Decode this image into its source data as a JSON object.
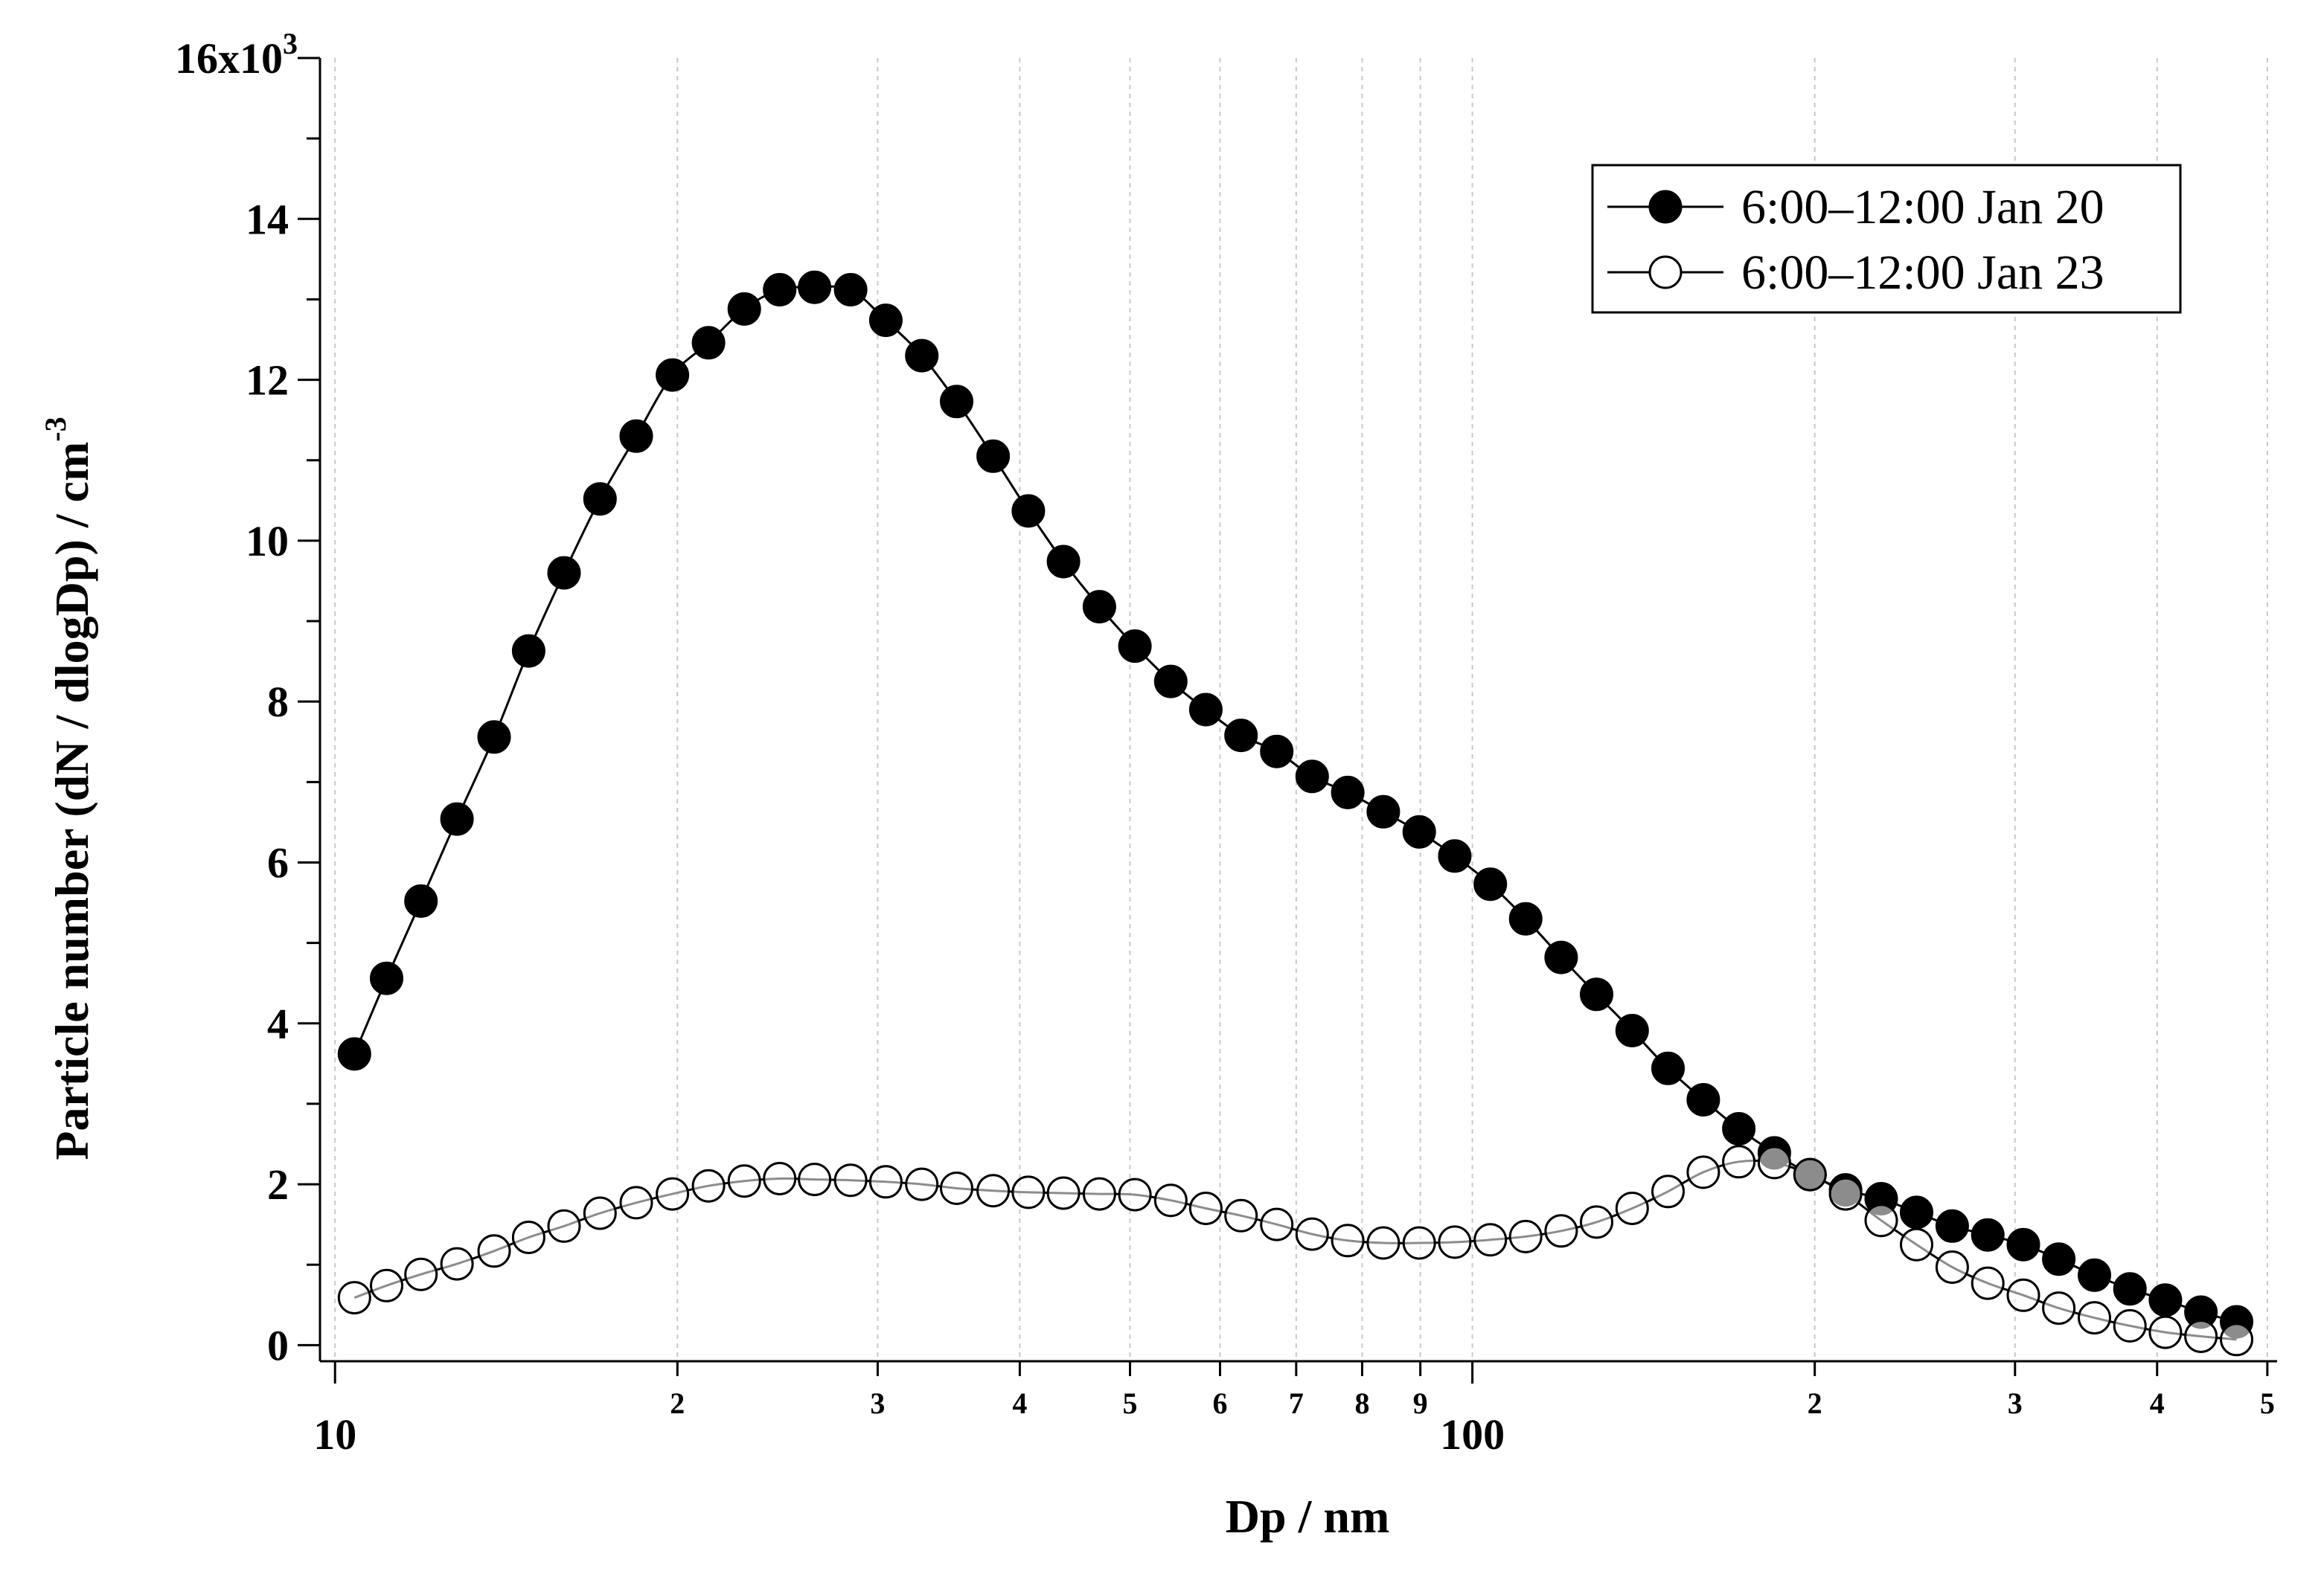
{
  "chart_data": {
    "type": "line",
    "title": "",
    "xlabel": "Dp / nm",
    "ylabel": "Particle number (dN / dlogDp) / cm",
    "ylabel_exponent": "-3",
    "x_scale": "log",
    "xlim": [
      9.7,
      510
    ],
    "ylim": [
      -200,
      16000
    ],
    "y_top_label": "16x10",
    "y_top_exponent": "3",
    "y_ticks": [
      {
        "value": 0,
        "label": "0"
      },
      {
        "value": 2000,
        "label": "2"
      },
      {
        "value": 4000,
        "label": "4"
      },
      {
        "value": 6000,
        "label": "6"
      },
      {
        "value": 8000,
        "label": "8"
      },
      {
        "value": 10000,
        "label": "10"
      },
      {
        "value": 12000,
        "label": "12"
      },
      {
        "value": 14000,
        "label": "14"
      }
    ],
    "x_major_ticks": [
      {
        "value": 10,
        "label": "10"
      },
      {
        "value": 100,
        "label": "100"
      }
    ],
    "x_minor_ticks": [
      {
        "value": 20,
        "label": "2"
      },
      {
        "value": 30,
        "label": "3"
      },
      {
        "value": 40,
        "label": "4"
      },
      {
        "value": 50,
        "label": "5"
      },
      {
        "value": 60,
        "label": "6"
      },
      {
        "value": 70,
        "label": "7"
      },
      {
        "value": 80,
        "label": "8"
      },
      {
        "value": 90,
        "label": "9"
      },
      {
        "value": 200,
        "label": "2"
      },
      {
        "value": 300,
        "label": "3"
      },
      {
        "value": 400,
        "label": "4"
      },
      {
        "value": 500,
        "label": "5"
      }
    ],
    "legend_position": "top-right",
    "series": [
      {
        "name": "6:00–12:00 Jan 20",
        "marker": "filled-circle",
        "x": [
          10.4,
          11.1,
          11.9,
          12.8,
          13.8,
          14.8,
          15.9,
          17.1,
          18.4,
          19.8,
          21.3,
          22.9,
          24.6,
          26.4,
          28.4,
          30.5,
          32.8,
          35.2,
          37.9,
          40.7,
          43.7,
          47.0,
          50.5,
          54.3,
          58.3,
          62.6,
          67.3,
          72.3,
          77.7,
          83.5,
          89.8,
          96.5,
          103.7,
          111.4,
          119.7,
          128.6,
          138.2,
          148.6,
          159.6,
          171.5,
          184.3,
          198.1,
          212.9,
          228.8,
          245.8,
          264.2,
          283.9,
          305.1,
          327.8,
          352.3,
          378.6,
          406.8,
          437.1,
          469.8
        ],
        "y": [
          3620,
          4560,
          5520,
          6540,
          7560,
          8630,
          9600,
          10520,
          11300,
          12060,
          12460,
          12880,
          13120,
          13150,
          13120,
          12740,
          12300,
          11730,
          11050,
          10370,
          9740,
          9180,
          8690,
          8250,
          7900,
          7580,
          7380,
          7070,
          6870,
          6630,
          6380,
          6080,
          5730,
          5300,
          4820,
          4360,
          3910,
          3440,
          3050,
          2690,
          2390,
          2120,
          1930,
          1820,
          1650,
          1480,
          1370,
          1250,
          1070,
          870,
          700,
          560,
          410,
          290
        ]
      },
      {
        "name": "6:00–12:00 Jan 23",
        "marker": "open-circle",
        "x": [
          10.4,
          11.1,
          11.9,
          12.8,
          13.8,
          14.8,
          15.9,
          17.1,
          18.4,
          19.8,
          21.3,
          22.9,
          24.6,
          26.4,
          28.4,
          30.5,
          32.8,
          35.2,
          37.9,
          40.7,
          43.7,
          47.0,
          50.5,
          54.3,
          58.3,
          62.6,
          67.3,
          72.3,
          77.7,
          83.5,
          89.8,
          96.5,
          103.7,
          111.4,
          119.7,
          128.6,
          138.2,
          148.6,
          159.6,
          171.5,
          184.3,
          198.1,
          212.9,
          228.8,
          245.8,
          264.2,
          283.9,
          305.1,
          327.8,
          352.3,
          378.6,
          406.8,
          437.1,
          469.8
        ],
        "y": [
          590,
          740,
          880,
          1010,
          1170,
          1340,
          1480,
          1640,
          1770,
          1880,
          1980,
          2040,
          2070,
          2060,
          2050,
          2030,
          2000,
          1950,
          1920,
          1900,
          1890,
          1880,
          1870,
          1800,
          1700,
          1610,
          1500,
          1380,
          1300,
          1270,
          1270,
          1280,
          1310,
          1350,
          1420,
          1530,
          1700,
          1910,
          2150,
          2280,
          2270,
          2120,
          1880,
          1550,
          1250,
          970,
          770,
          620,
          460,
          340,
          240,
          160,
          110,
          70
        ]
      }
    ]
  }
}
